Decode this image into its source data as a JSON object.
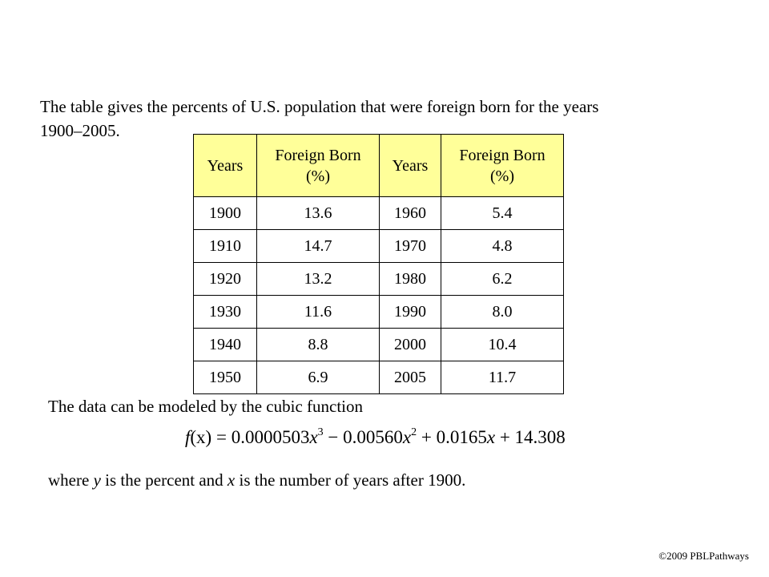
{
  "intro": {
    "line1": "The table gives the percents of U.S. population that were foreign born for the years",
    "line2": "1900–2005."
  },
  "table": {
    "headers": [
      "Years",
      "Foreign Born",
      "(%)",
      "Years",
      "Foreign Born",
      "(%)"
    ],
    "header_fill": "#ffff99",
    "rows": [
      [
        "1900",
        "13.6",
        "1960",
        "5.4"
      ],
      [
        "1910",
        "14.7",
        "1970",
        "4.8"
      ],
      [
        "1920",
        "13.2",
        "1980",
        "6.2"
      ],
      [
        "1930",
        "11.6",
        "1990",
        "8.0"
      ],
      [
        "1940",
        "8.8",
        "2000",
        "10.4"
      ],
      [
        "1950",
        "6.9",
        "2005",
        "11.7"
      ]
    ]
  },
  "model": {
    "text": "The data can be modeled by the cubic function",
    "formula": {
      "lhs": "f",
      "arg": "(x)",
      "eq": " = 0.0000503",
      "x1": "x",
      "exp1": "3",
      "mid1": " − 0.00560",
      "x2": "x",
      "exp2": "2",
      "mid2": " + 0.0165",
      "x3": "x",
      "tail": " + 14.308"
    }
  },
  "where": {
    "pre": "where ",
    "y": "y",
    "mid": " is the percent and ",
    "x": "x",
    "post": " is the number of years after 1900."
  },
  "footer": {
    "copyright": "©2009 PBLPathways"
  }
}
